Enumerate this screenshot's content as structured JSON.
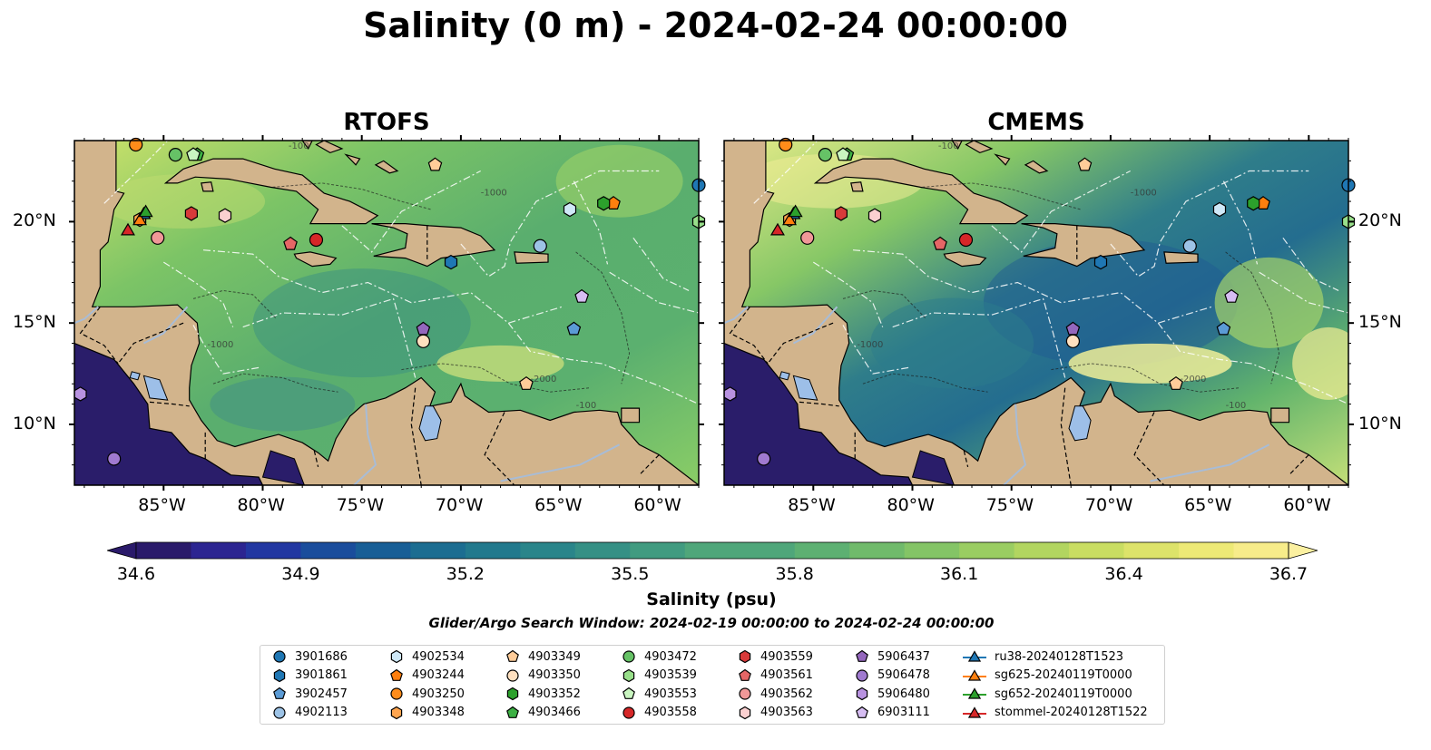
{
  "title": "Salinity (0 m) - 2024-02-24 00:00:00",
  "panels": [
    {
      "name": "RTOFS"
    },
    {
      "name": "CMEMS"
    }
  ],
  "axes": {
    "lon_ticks": [
      "85°W",
      "80°W",
      "75°W",
      "70°W",
      "65°W",
      "60°W"
    ],
    "lat_ticks": [
      "20°N",
      "15°N",
      "10°N"
    ],
    "lon_range": [
      -89.5,
      -58.0
    ],
    "lat_range": [
      7.0,
      24.0
    ]
  },
  "contour_labels": [
    "-100",
    "-1000",
    "-2000"
  ],
  "colorbar": {
    "label": "Salinity (psu)",
    "ticks": [
      "34.6",
      "34.9",
      "35.2",
      "35.5",
      "35.8",
      "36.1",
      "36.4",
      "36.7"
    ],
    "min": 34.6,
    "max": 36.7,
    "colormap": "haline",
    "extend": "both"
  },
  "search_window": "Glider/Argo Search Window: 2024-02-19 00:00:00 to 2024-02-24 00:00:00",
  "colors": {
    "land": "#d2b48c",
    "lake": "#9dbfe8",
    "pacific": "#2a1d6a"
  },
  "legend": [
    {
      "label": "3901686",
      "marker": "circle",
      "color": "#1f77b4"
    },
    {
      "label": "3901861",
      "marker": "hexagon",
      "color": "#1f77b4"
    },
    {
      "label": "3902457",
      "marker": "pentagon",
      "color": "#5b9bd5"
    },
    {
      "label": "4902113",
      "marker": "circle",
      "color": "#9dc3e6"
    },
    {
      "label": "4902534",
      "marker": "hexagon",
      "color": "#cfe8f7"
    },
    {
      "label": "4903244",
      "marker": "pentagon",
      "color": "#ff7f0e"
    },
    {
      "label": "4903250",
      "marker": "circle",
      "color": "#ff8c1a"
    },
    {
      "label": "4903348",
      "marker": "hexagon",
      "color": "#ffa54f"
    },
    {
      "label": "4903349",
      "marker": "pentagon",
      "color": "#ffcc99"
    },
    {
      "label": "4903350",
      "marker": "circle",
      "color": "#ffe0bf"
    },
    {
      "label": "4903352",
      "marker": "hexagon",
      "color": "#2ca02c"
    },
    {
      "label": "4903466",
      "marker": "pentagon",
      "color": "#3cb043"
    },
    {
      "label": "4903472",
      "marker": "circle",
      "color": "#66c266"
    },
    {
      "label": "4903539",
      "marker": "hexagon",
      "color": "#98df8a"
    },
    {
      "label": "4903553",
      "marker": "pentagon",
      "color": "#c9f5c0"
    },
    {
      "label": "4903558",
      "marker": "circle",
      "color": "#d62728"
    },
    {
      "label": "4903559",
      "marker": "hexagon",
      "color": "#d83a3a"
    },
    {
      "label": "4903561",
      "marker": "pentagon",
      "color": "#e56666"
    },
    {
      "label": "4903562",
      "marker": "circle",
      "color": "#f09898"
    },
    {
      "label": "4903563",
      "marker": "hexagon",
      "color": "#fbd0d0"
    },
    {
      "label": "5906437",
      "marker": "pentagon",
      "color": "#9467bd"
    },
    {
      "label": "5906478",
      "marker": "circle",
      "color": "#a07ad0"
    },
    {
      "label": "5906480",
      "marker": "hexagon",
      "color": "#b892e0"
    },
    {
      "label": "6903111",
      "marker": "pentagon",
      "color": "#d6bdf2"
    },
    {
      "label": "ru38-20240128T1523",
      "marker": "triangle-line",
      "color": "#1f77b4"
    },
    {
      "label": "sg625-20240119T0000",
      "marker": "triangle-line",
      "color": "#ff7f0e"
    },
    {
      "label": "sg652-20240119T0000",
      "marker": "triangle-line",
      "color": "#2ca02c"
    },
    {
      "label": "stommel-20240128T1522",
      "marker": "triangle-line",
      "color": "#d62728"
    }
  ],
  "observations": [
    {
      "id": "3901686",
      "lon": -58.0,
      "lat": 21.8
    },
    {
      "id": "3901861",
      "lon": -70.5,
      "lat": 18.0
    },
    {
      "id": "3902457",
      "lon": -64.3,
      "lat": 14.7
    },
    {
      "id": "4902113",
      "lon": -66.0,
      "lat": 18.8
    },
    {
      "id": "4902534",
      "lon": -64.5,
      "lat": 20.6
    },
    {
      "id": "4903244",
      "lon": -62.3,
      "lat": 20.9
    },
    {
      "id": "4903250",
      "lon": -86.4,
      "lat": 23.8
    },
    {
      "id": "4903348",
      "lon": -86.2,
      "lat": 20.1
    },
    {
      "id": "4903349",
      "lon": -66.7,
      "lat": 12.0
    },
    {
      "id": "4903350",
      "lon": -71.9,
      "lat": 14.1
    },
    {
      "id": "4903352",
      "lon": -62.8,
      "lat": 20.9
    },
    {
      "id": "4903466",
      "lon": -83.3,
      "lat": 23.3
    },
    {
      "id": "4903472",
      "lon": -84.4,
      "lat": 23.3
    },
    {
      "id": "4903539",
      "lon": -58.0,
      "lat": 20.0
    },
    {
      "id": "4903553",
      "lon": -83.5,
      "lat": 23.3
    },
    {
      "id": "4903558",
      "lon": -77.3,
      "lat": 19.1
    },
    {
      "id": "4903559",
      "lon": -83.6,
      "lat": 20.4
    },
    {
      "id": "4903561",
      "lon": -78.6,
      "lat": 18.9
    },
    {
      "id": "4903562",
      "lon": -85.3,
      "lat": 19.2
    },
    {
      "id": "4903563",
      "lon": -81.9,
      "lat": 20.3
    },
    {
      "id": "5906437",
      "lon": -71.9,
      "lat": 14.7
    },
    {
      "id": "5906478",
      "lon": -87.5,
      "lat": 8.3
    },
    {
      "id": "5906480",
      "lon": -89.2,
      "lat": 11.5
    },
    {
      "id": "6903111",
      "lon": -63.9,
      "lat": 16.3
    },
    {
      "id": "ru38-20240128T1523",
      "lon": -86.0,
      "lat": 20.4
    },
    {
      "id": "sg625-20240119T0000",
      "lon": -86.2,
      "lat": 20.1
    },
    {
      "id": "sg652-20240119T0000",
      "lon": -85.9,
      "lat": 20.5
    },
    {
      "id": "stommel-20240128T1522",
      "lon": -86.8,
      "lat": 19.6
    }
  ],
  "extra_marks": [
    {
      "id": "4903349",
      "lon": -71.3,
      "lat": 22.8
    }
  ]
}
